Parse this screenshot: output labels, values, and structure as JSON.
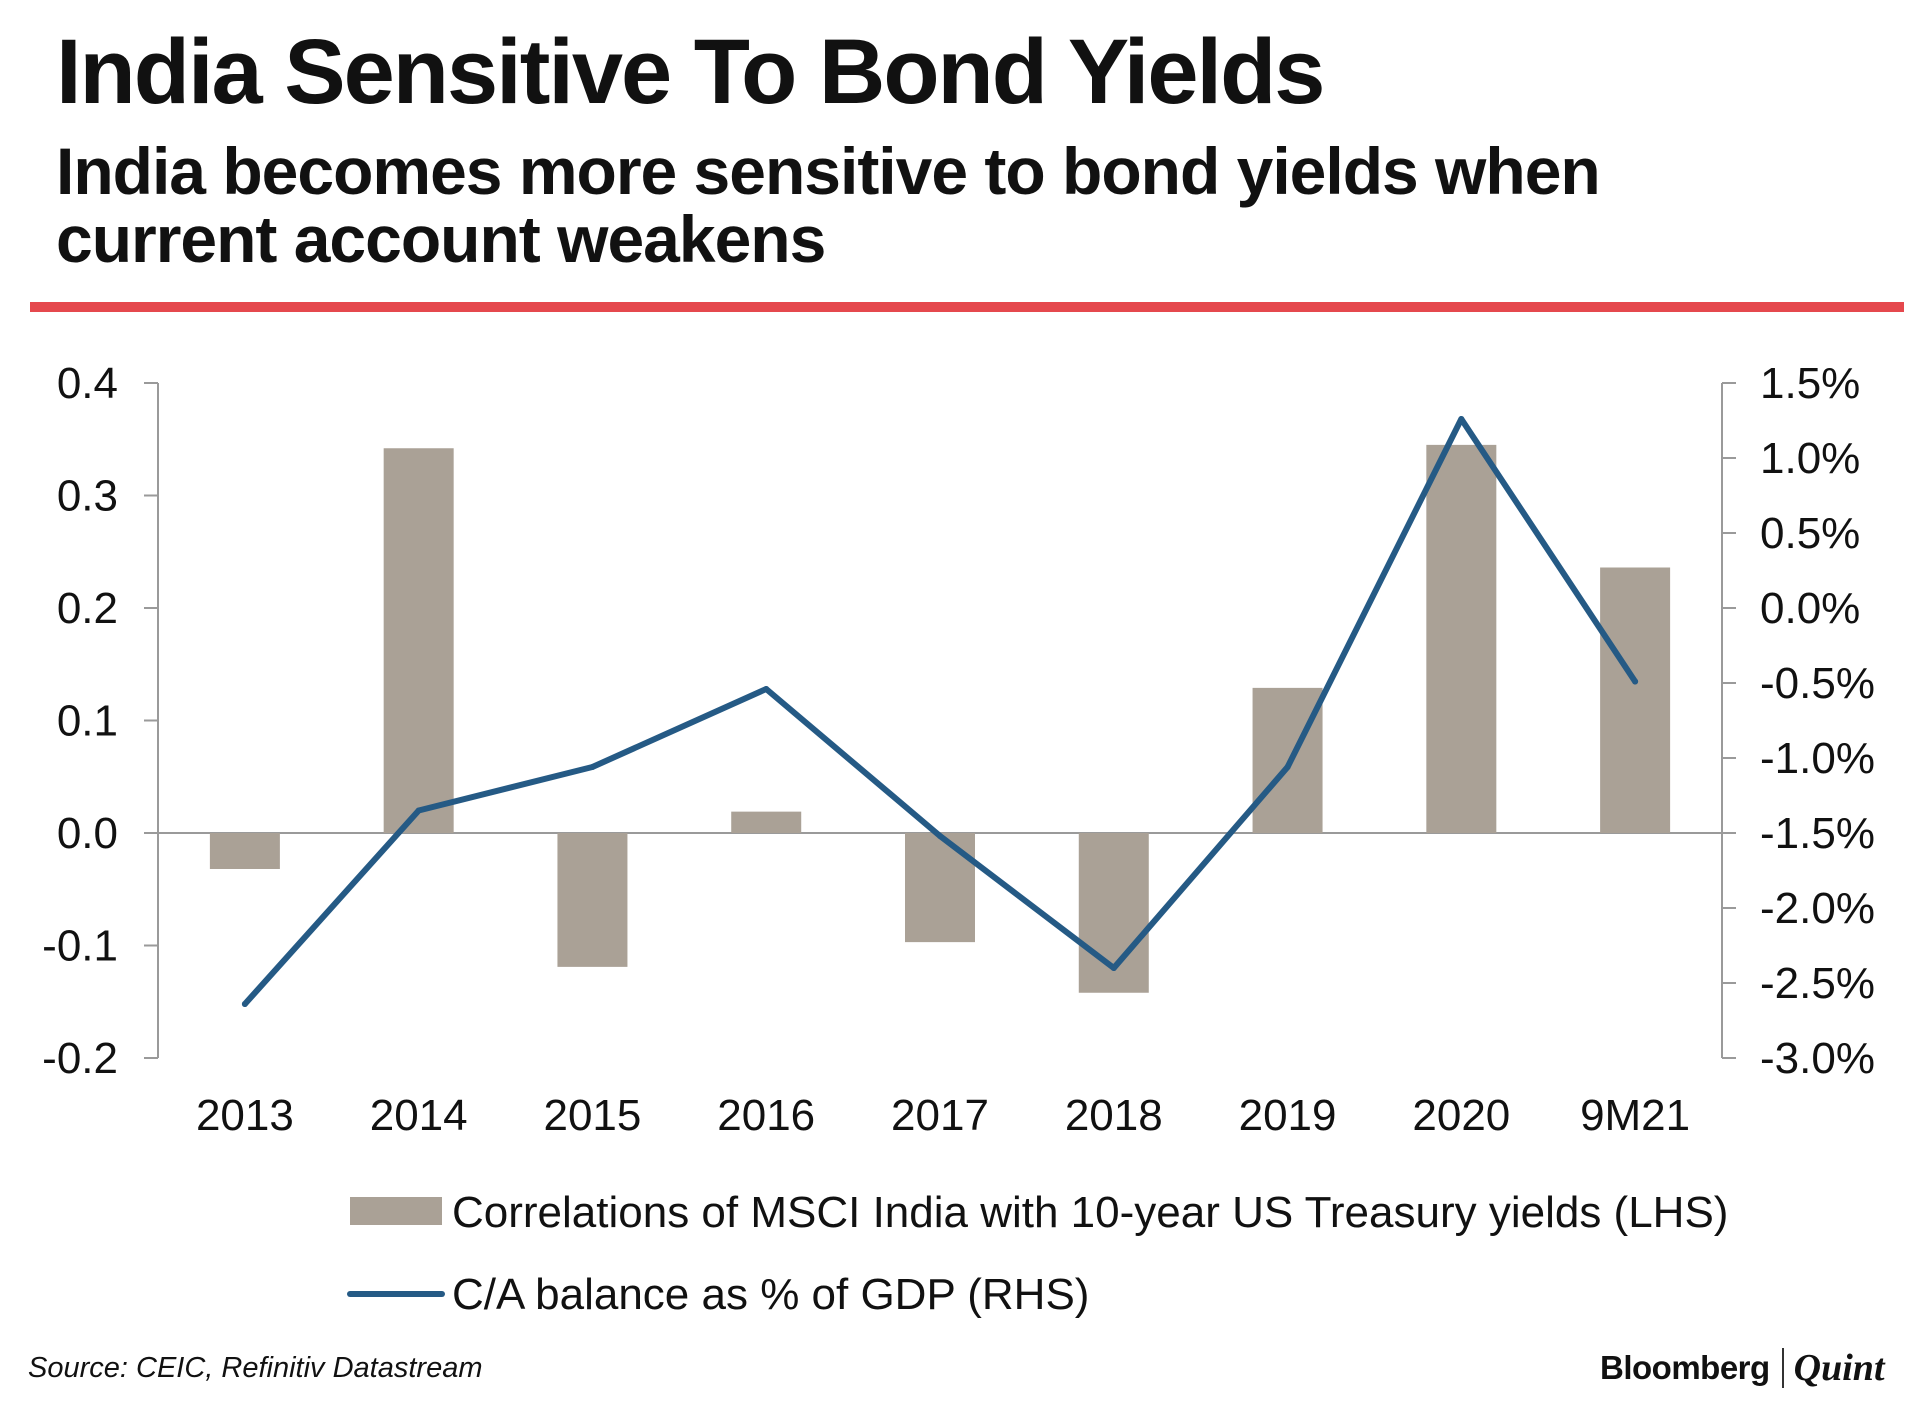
{
  "header": {
    "title": "India Sensitive To Bond Yields",
    "subtitle": "India becomes more sensitive to bond yields when current account weakens"
  },
  "chart_data": {
    "type": "bar",
    "categories": [
      "2013",
      "2014",
      "2015",
      "2016",
      "2017",
      "2018",
      "2019",
      "2020",
      "9M21"
    ],
    "series": [
      {
        "name": "Correlations of MSCI India with 10-year US Treasury yields (LHS)",
        "type": "bar",
        "axis": "left",
        "color": "#aaa196",
        "values": [
          -0.032,
          0.342,
          -0.119,
          0.019,
          -0.097,
          -0.142,
          0.129,
          0.345,
          0.236
        ]
      },
      {
        "name": "C/A balance as % of GDP (RHS)",
        "type": "line",
        "axis": "right",
        "color": "#255a85",
        "values": [
          -2.64,
          -1.35,
          -1.06,
          -0.54,
          -1.52,
          -2.4,
          -1.06,
          1.26,
          -0.49
        ]
      }
    ],
    "y_left": {
      "min": -0.2,
      "max": 0.4,
      "ticks": [
        "0.4",
        "0.3",
        "0.2",
        "0.1",
        "0.0",
        "-0.1",
        "-0.2"
      ]
    },
    "y_right": {
      "min": -3.0,
      "max": 1.5,
      "ticks": [
        "1.5%",
        "1.0%",
        "0.5%",
        "0.0%",
        "-0.5%",
        "-1.0%",
        "-1.5%",
        "-2.0%",
        "-2.5%",
        "-3.0%"
      ]
    },
    "grid": false,
    "legend_position": "bottom"
  },
  "footer": {
    "source": "Source: CEIC, Refinitiv Datastream",
    "brand_primary": "Bloomberg",
    "brand_secondary": "Quint"
  }
}
